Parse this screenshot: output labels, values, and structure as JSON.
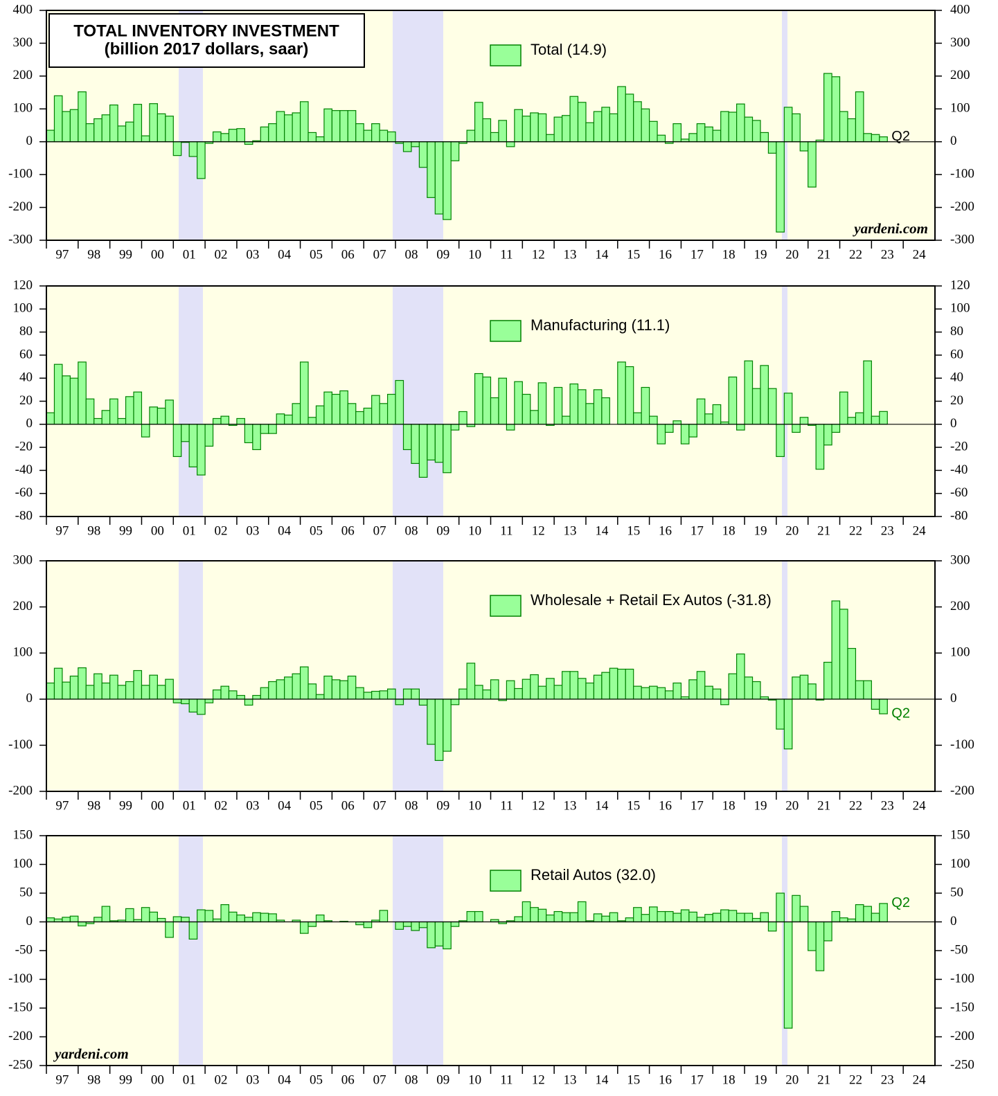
{
  "chart_data": [
    {
      "type": "bar",
      "title": "TOTAL INVENTORY INVESTMENT",
      "subtitle": "(billion 2017 dollars, saar)",
      "source": "yardeni.com",
      "annotation": "Q2",
      "ylim": [
        -300,
        400
      ],
      "yticks": [
        -300,
        -200,
        -100,
        0,
        100,
        200,
        300,
        400
      ],
      "x_labels": [
        "97",
        "98",
        "99",
        "00",
        "01",
        "02",
        "03",
        "04",
        "05",
        "06",
        "07",
        "08",
        "09",
        "10",
        "11",
        "12",
        "13",
        "14",
        "15",
        "16",
        "17",
        "18",
        "19",
        "20",
        "21",
        "22",
        "23",
        "24"
      ],
      "series": [
        {
          "name": "Total (14.9)",
          "color": "#99ff99",
          "values": [
            35,
            140,
            92,
            98,
            152,
            55,
            70,
            82,
            112,
            48,
            60,
            114,
            18,
            116,
            85,
            78,
            -42,
            -2,
            -45,
            -112,
            -5,
            30,
            25,
            38,
            40,
            -8,
            3,
            45,
            55,
            92,
            82,
            88,
            122,
            28,
            15,
            100,
            95,
            95,
            95,
            55,
            35,
            55,
            35,
            30,
            -5,
            -30,
            -15,
            -78,
            -170,
            -220,
            -237,
            -58,
            -5,
            35,
            120,
            70,
            28,
            65,
            -15,
            98,
            78,
            88,
            85,
            22,
            75,
            80,
            138,
            120,
            58,
            92,
            105,
            85,
            168,
            145,
            122,
            100,
            62,
            20,
            -5,
            55,
            8,
            25,
            55,
            45,
            35,
            92,
            90,
            115,
            75,
            65,
            28,
            -35,
            -275,
            105,
            85,
            -28,
            -138,
            5,
            208,
            198,
            92,
            70,
            152,
            25,
            22,
            14.9
          ]
        }
      ]
    },
    {
      "type": "bar",
      "ylim": [
        -80,
        120
      ],
      "yticks": [
        -80,
        -60,
        -40,
        -20,
        0,
        20,
        40,
        60,
        80,
        100,
        120
      ],
      "x_labels": [
        "97",
        "98",
        "99",
        "00",
        "01",
        "02",
        "03",
        "04",
        "05",
        "06",
        "07",
        "08",
        "09",
        "10",
        "11",
        "12",
        "13",
        "14",
        "15",
        "16",
        "17",
        "18",
        "19",
        "20",
        "21",
        "22",
        "23",
        "24"
      ],
      "series": [
        {
          "name": "Manufacturing (11.1)",
          "color": "#99ff99",
          "values": [
            10,
            52,
            42,
            40,
            54,
            22,
            5,
            12,
            22,
            5,
            24,
            28,
            -11,
            15,
            14,
            21,
            -28,
            -15,
            -37,
            -44,
            -19,
            5,
            7,
            -1,
            5,
            -16,
            -22,
            -8,
            -8,
            9,
            8,
            18,
            54,
            6,
            16,
            28,
            26,
            29,
            18,
            11,
            14,
            25,
            18,
            26,
            38,
            -22,
            -34,
            -46,
            -31,
            -33,
            -42,
            -5,
            11,
            -2,
            44,
            41,
            23,
            40,
            -5,
            37,
            26,
            12,
            36,
            -1,
            32,
            7,
            35,
            30,
            18,
            30,
            23,
            0,
            54,
            50,
            10,
            32,
            7,
            -17,
            -7,
            3,
            -17,
            -11,
            22,
            9,
            17,
            2,
            41,
            -5,
            55,
            31,
            51,
            31,
            -28,
            27,
            -7,
            6,
            -1,
            -39,
            -18,
            -7,
            28,
            6,
            10,
            55,
            7,
            11.1
          ]
        }
      ]
    },
    {
      "type": "bar",
      "annotation": "Q2",
      "ylim": [
        -200,
        300
      ],
      "yticks": [
        -200,
        -100,
        0,
        100,
        200,
        300
      ],
      "x_labels": [
        "97",
        "98",
        "99",
        "00",
        "01",
        "02",
        "03",
        "04",
        "05",
        "06",
        "07",
        "08",
        "09",
        "10",
        "11",
        "12",
        "13",
        "14",
        "15",
        "16",
        "17",
        "18",
        "19",
        "20",
        "21",
        "22",
        "23",
        "24"
      ],
      "series": [
        {
          "name": "Wholesale + Retail Ex Autos (-31.8)",
          "color": "#99ff99",
          "values": [
            35,
            67,
            37,
            50,
            68,
            30,
            55,
            35,
            52,
            30,
            38,
            62,
            30,
            52,
            30,
            43,
            -8,
            -10,
            -28,
            -33,
            -8,
            20,
            28,
            18,
            8,
            -13,
            8,
            25,
            38,
            42,
            48,
            55,
            70,
            33,
            10,
            50,
            42,
            40,
            50,
            25,
            15,
            17,
            18,
            22,
            -12,
            22,
            22,
            -13,
            -98,
            -133,
            -113,
            -12,
            22,
            78,
            30,
            20,
            42,
            -3,
            40,
            23,
            43,
            53,
            28,
            45,
            30,
            60,
            60,
            45,
            35,
            52,
            58,
            67,
            65,
            65,
            28,
            25,
            28,
            25,
            18,
            35,
            5,
            42,
            60,
            28,
            22,
            -12,
            55,
            98,
            48,
            38,
            5,
            -2,
            -65,
            -108,
            48,
            52,
            33,
            -2,
            80,
            213,
            195,
            110,
            40,
            40,
            -22,
            -31.8
          ]
        }
      ]
    },
    {
      "type": "bar",
      "annotation": "Q2",
      "source": "yardeni.com",
      "ylim": [
        -250,
        150
      ],
      "yticks": [
        -250,
        -200,
        -150,
        -100,
        -50,
        0,
        50,
        100,
        150
      ],
      "x_labels": [
        "97",
        "98",
        "99",
        "00",
        "01",
        "02",
        "03",
        "04",
        "05",
        "06",
        "07",
        "08",
        "09",
        "10",
        "11",
        "12",
        "13",
        "14",
        "15",
        "16",
        "17",
        "18",
        "19",
        "20",
        "21",
        "22",
        "23",
        "24"
      ],
      "series": [
        {
          "name": "Retail Autos (32.0)",
          "color": "#99ff99",
          "values": [
            7,
            5,
            8,
            10,
            -7,
            -3,
            8,
            27,
            2,
            3,
            23,
            4,
            25,
            17,
            6,
            -27,
            9,
            8,
            -30,
            21,
            20,
            5,
            30,
            17,
            12,
            8,
            16,
            15,
            14,
            3,
            0,
            3,
            -20,
            -8,
            12,
            2,
            0,
            1,
            0,
            -5,
            -10,
            3,
            20,
            0,
            -13,
            -8,
            -15,
            -10,
            -45,
            -42,
            -47,
            -8,
            2,
            18,
            18,
            0,
            4,
            -3,
            2,
            9,
            35,
            25,
            22,
            12,
            18,
            16,
            16,
            35,
            2,
            14,
            10,
            16,
            2,
            7,
            25,
            13,
            26,
            18,
            18,
            15,
            21,
            17,
            8,
            13,
            15,
            21,
            20,
            15,
            15,
            6,
            16,
            -16,
            50,
            -185,
            46,
            27,
            -50,
            -85,
            -33,
            18,
            7,
            5,
            30,
            27,
            15,
            32
          ]
        }
      ]
    }
  ]
}
